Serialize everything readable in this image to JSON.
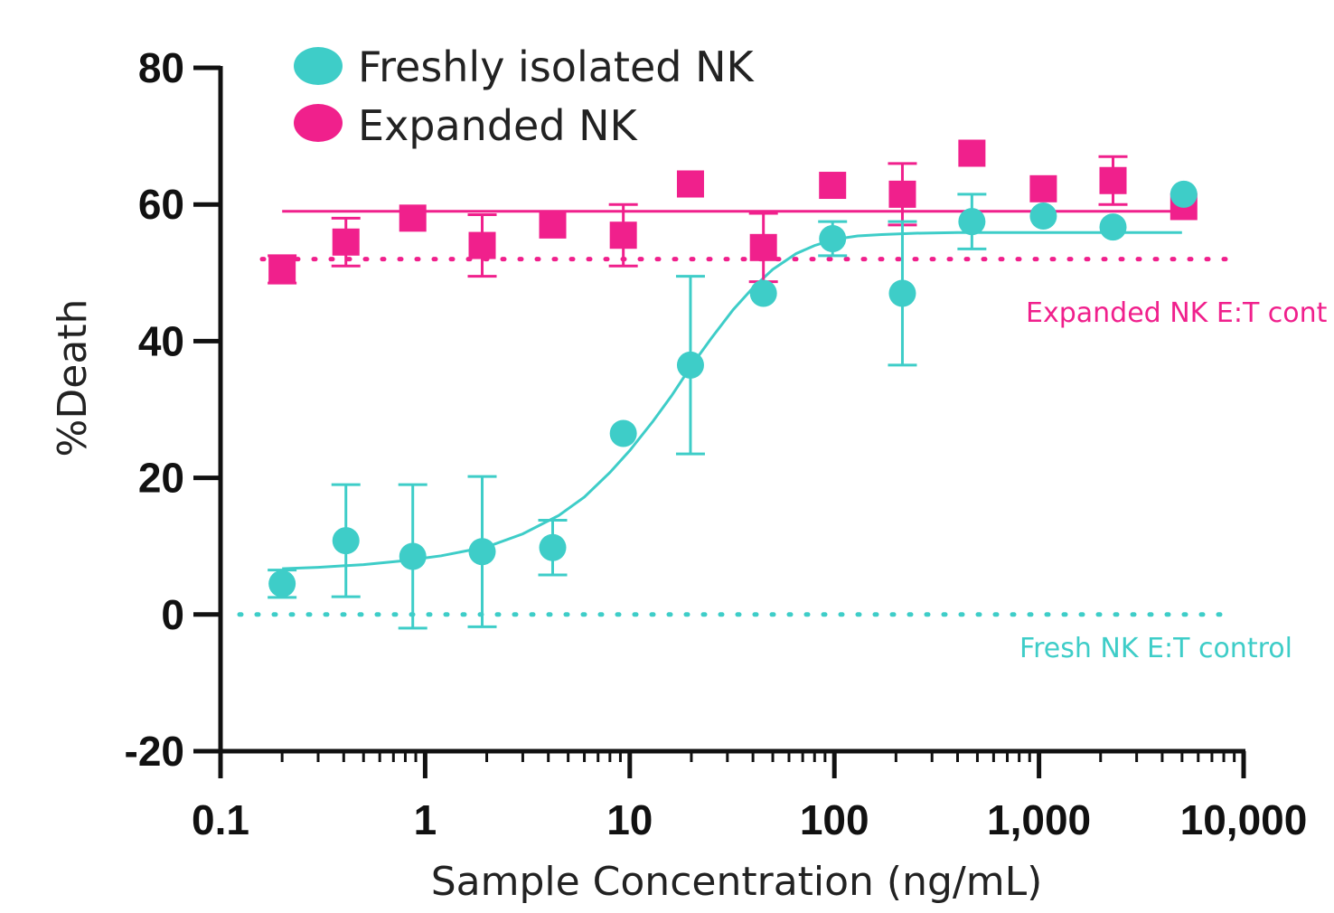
{
  "chart_data": {
    "type": "scatter",
    "xscale": "log",
    "xlim": [
      0.1,
      10000
    ],
    "ylim": [
      -20,
      80
    ],
    "x_ticks": [
      0.1,
      1,
      10,
      100,
      1000,
      10000
    ],
    "x_tick_labels": [
      "0.1",
      "1",
      "10",
      "100",
      "1,000",
      "10,000"
    ],
    "y_ticks": [
      -20,
      0,
      20,
      40,
      60,
      80
    ],
    "y_tick_labels": [
      "-20",
      "0",
      "20",
      "40",
      "60",
      "80"
    ],
    "xlabel": "Sample Concentration (ng/mL)",
    "ylabel": "%Death",
    "legend": {
      "placement": "top-left",
      "entries": [
        "Freshly isolated NK",
        "Expanded NK"
      ]
    },
    "series": [
      {
        "name": "Freshly isolated NK",
        "color": "#3ecdc8",
        "marker": "circle",
        "x": [
          0.2,
          0.41,
          0.87,
          1.9,
          4.2,
          9.3,
          19.8,
          45,
          98,
          215,
          470,
          1050,
          2300,
          5100
        ],
        "y": [
          4.5,
          10.8,
          8.5,
          9.2,
          9.8,
          26.5,
          36.5,
          47,
          55,
          47,
          57.5,
          58.3,
          56.7,
          61.5
        ],
        "error": [
          2.0,
          8.2,
          10.5,
          11.0,
          4.0,
          0,
          13.0,
          0,
          2.5,
          10.5,
          4.0,
          0,
          0,
          0
        ],
        "fit": {
          "x": [
            0.2,
            0.3,
            0.5,
            0.8,
            1.2,
            2,
            3,
            4.5,
            6,
            8,
            10,
            13,
            16,
            20,
            25,
            32,
            40,
            50,
            65,
            80,
            100,
            130,
            170,
            250,
            400,
            700,
            1200,
            2500,
            5000
          ],
          "y": [
            6.7,
            6.9,
            7.3,
            7.9,
            8.6,
            9.9,
            11.8,
            14.5,
            17.2,
            20.8,
            24.0,
            28.3,
            32.0,
            36.4,
            40.4,
            44.6,
            47.8,
            50.5,
            52.8,
            54.0,
            54.9,
            55.4,
            55.6,
            55.8,
            55.9,
            55.9,
            55.9,
            55.9,
            55.9
          ]
        },
        "control": {
          "label": "Fresh NK E:T control",
          "y": 0
        }
      },
      {
        "name": "Expanded NK",
        "color": "#f0208c",
        "marker": "square",
        "x": [
          0.2,
          0.41,
          0.87,
          1.9,
          4.2,
          9.3,
          19.8,
          45,
          98,
          215,
          470,
          1050,
          2300,
          5100
        ],
        "y": [
          50.5,
          54.5,
          58,
          54,
          57,
          55.5,
          63,
          53.7,
          62.8,
          61.5,
          67.5,
          62.3,
          63.5,
          59.7
        ],
        "error": [
          2.0,
          3.5,
          0,
          4.5,
          0,
          4.5,
          0,
          5.0,
          0,
          4.5,
          0,
          0,
          3.5,
          0
        ],
        "fit": {
          "x": [
            0.2,
            5100
          ],
          "y": [
            59.0,
            59.0
          ]
        },
        "control": {
          "label": "Expanded NK E:T cont",
          "y": 52
        }
      }
    ]
  }
}
